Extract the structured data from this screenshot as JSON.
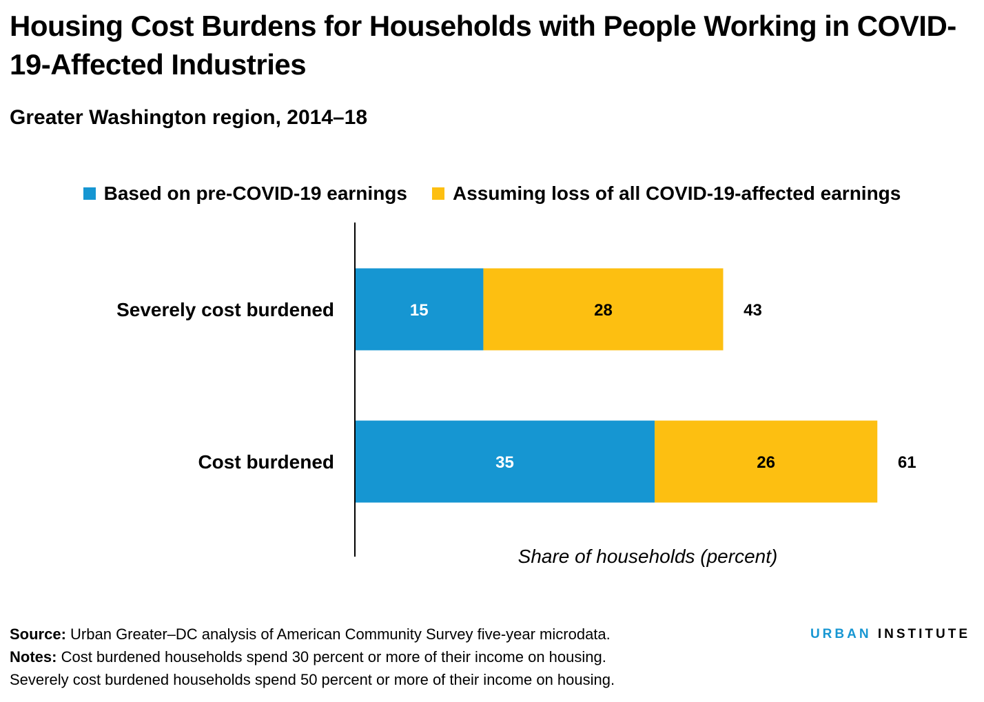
{
  "title": "Housing Cost Burdens for Households with People Working in COVID-19-Affected Industries",
  "subtitle": "Greater Washington region, 2014–18",
  "footer": {
    "source_label": "Source:",
    "source_text": " Urban Greater–DC analysis of American Community Survey five-year microdata.",
    "notes_label": "Notes:",
    "notes_text": " Cost burdened households spend 30 percent or more of their income on housing.",
    "notes_text2": "Severely cost burdened households spend 50 percent or more of their income on housing."
  },
  "logo": {
    "urban": "URBAN",
    "institute": "INSTITUTE"
  },
  "colors": {
    "blue": "#1696d2",
    "yellow": "#fdbf11",
    "urban_blue": "#1696d2"
  },
  "chart_data": {
    "type": "bar",
    "orientation": "horizontal",
    "stacked": true,
    "title": "Housing Cost Burdens for Households with People Working in COVID-19-Affected Industries",
    "subtitle": "Greater Washington region, 2014–18",
    "categories": [
      "Severely cost burdened",
      "Cost burdened"
    ],
    "series": [
      {
        "name": "Based on pre-COVID-19 earnings",
        "color": "#1696d2",
        "values": [
          15,
          35
        ]
      },
      {
        "name": "Assuming loss of all COVID-19-affected earnings",
        "color": "#fdbf11",
        "values": [
          28,
          26
        ]
      }
    ],
    "totals": [
      43,
      61
    ],
    "xlabel": "Share of households (percent)",
    "ylabel": "",
    "xlim": [
      0,
      70
    ],
    "grid": false,
    "legend_position": "top-center"
  }
}
